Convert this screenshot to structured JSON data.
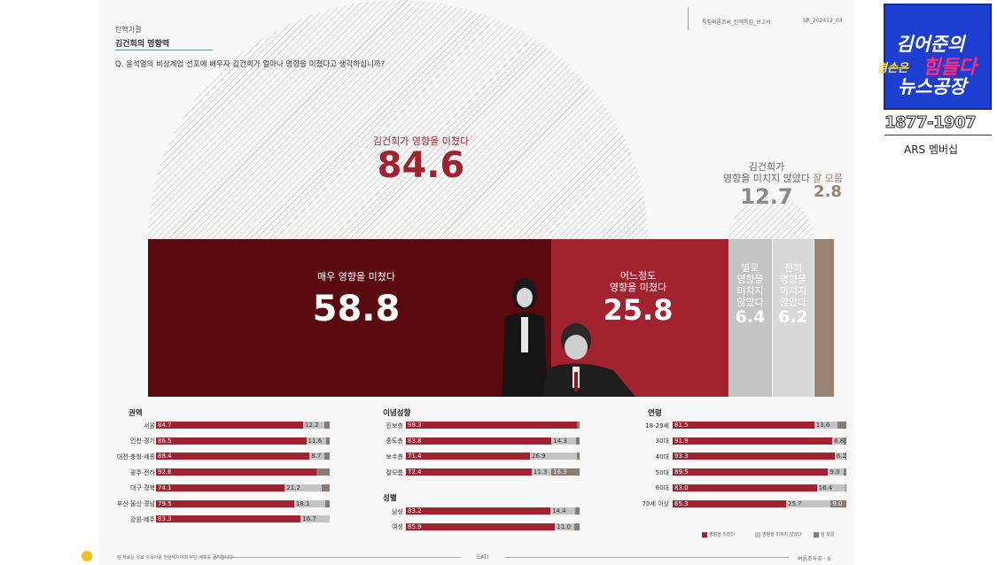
{
  "header": {
    "section": "탄핵가결",
    "subtitle": "김건희의 영향력",
    "report": "특집여론조사_탄핵특집_보고서",
    "code": "SR_202412_03",
    "question": "Q. 윤석열의 비상계엄 선포에 배우자 김건희가 얼마나 영향을 미쳤다고 생각하십니까?"
  },
  "chart_data": [
    {
      "type": "bar",
      "title": "",
      "groups": [
        {
          "label": "김건희가 영향을 미쳤다",
          "value": 84.6
        },
        {
          "label": "김건희가 영향을 미치지 않았다",
          "value": 12.7
        },
        {
          "label": "잘 모름",
          "value": 2.8
        }
      ],
      "series": [
        {
          "name": "매우 영향을 미쳤다",
          "value": 58.8
        },
        {
          "name": "어느정도 영향을 미쳤다",
          "value": 25.8
        },
        {
          "name": "별로 영향을 미치지 않았다",
          "value": 6.4
        },
        {
          "name": "전혀 영향을 미치지 않았다",
          "value": 6.2
        },
        {
          "name": "잘 모름",
          "value": 2.8
        }
      ],
      "colors": [
        "#5a0a0e",
        "#a3222f",
        "#c4c4c4",
        "#d8d8d8",
        "#9a8273"
      ]
    },
    {
      "type": "bar",
      "title": "권역",
      "categories": [
        "서울",
        "인천·경기",
        "대전·충청·세종",
        "광주·전라",
        "대구·경북",
        "부산·울산·경남",
        "강원·제주"
      ],
      "series": [
        {
          "name": "영향을 미쳤다",
          "values": [
            84.7,
            86.5,
            88.4,
            92.6,
            74.1,
            79.5,
            83.3
          ]
        },
        {
          "name": "영향을 미치지 않았다",
          "values": [
            12.2,
            11.6,
            8.7,
            null,
            21.2,
            18.1,
            16.7
          ]
        }
      ]
    },
    {
      "type": "bar",
      "title": "이념성향",
      "categories": [
        "진보층",
        "중도층",
        "보수층",
        "잘모름"
      ],
      "series": [
        {
          "name": "영향을 미쳤다",
          "values": [
            98.3,
            83.8,
            71.4,
            72.4
          ]
        },
        {
          "name": "영향을 미치지 않았다",
          "values": [
            null,
            14.3,
            26.9,
            11.3
          ]
        },
        {
          "name": "잘 모름",
          "values": [
            null,
            null,
            null,
            16.3
          ]
        }
      ]
    },
    {
      "type": "bar",
      "title": "성별",
      "categories": [
        "남성",
        "여성"
      ],
      "series": [
        {
          "name": "영향을 미쳤다",
          "values": [
            83.2,
            85.9
          ]
        },
        {
          "name": "영향을 미치지 않았다",
          "values": [
            14.4,
            11.0
          ]
        }
      ]
    },
    {
      "type": "bar",
      "title": "연령",
      "categories": [
        "18-29세",
        "30대",
        "40대",
        "50대",
        "60대",
        "70세 이상"
      ],
      "series": [
        {
          "name": "영향을 미쳤다",
          "values": [
            81.5,
            91.9,
            93.3,
            89.5,
            83.0,
            65.3
          ]
        },
        {
          "name": "영향을 미치지 않았다",
          "values": [
            13.6,
            6.8,
            6.2,
            9.0,
            16.4,
            25.7
          ]
        },
        {
          "name": "잘 모름",
          "values": [
            null,
            null,
            null,
            null,
            null,
            9.0
          ]
        }
      ]
    }
  ],
  "top_labels": {
    "influenced": "김건희가 영향을 미쳤다",
    "influenced_value": "84.6",
    "not_influenced_l1": "김건희가",
    "not_influenced_l2": "영향을 미치지 않았다",
    "not_influenced_value": "12.7",
    "dont_know": "잘 모름",
    "dont_know_value": "2.8"
  },
  "bar_labels": {
    "very": "매우 영향을 미쳤다",
    "very_value": "58.8",
    "some_l1": "어느정도",
    "some_l2": "영향을 미쳤다",
    "some_value": "25.8",
    "notmuch": [
      "별로",
      "영향을",
      "미치지",
      "않았다"
    ],
    "notmuch_value": "6.4",
    "notatall": [
      "전혀",
      "영향을",
      "미치지",
      "않았다"
    ],
    "notatall_value": "6.2"
  },
  "legend": [
    "영향을 미쳤다",
    "영향을 미치지 않았다",
    "잘 모름"
  ],
  "footer": {
    "note": "본 자료는 유료 구독자용 전현재지이며 무단 배포를 금지합니다",
    "method": "CATI",
    "page": "여론조사꽃 · 9"
  },
  "logo": {
    "line1": "김어준의",
    "line2a": "겸손은",
    "line2b": "힘들다",
    "line3": "뉴스공장",
    "phone": "1877-1907",
    "ars": "ARS 멤버십"
  },
  "colors": {
    "dark_red": "#5a0a0e",
    "red": "#a3222f",
    "grey": "#c4c4c4",
    "brown": "#9a8273",
    "logo_blue": "#1c3fd1"
  }
}
